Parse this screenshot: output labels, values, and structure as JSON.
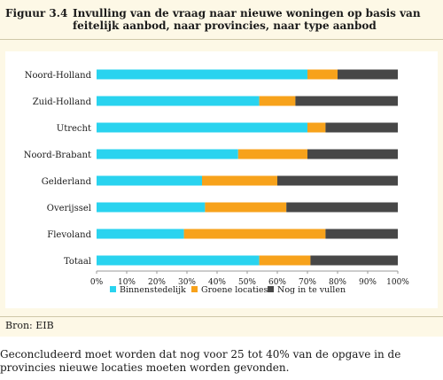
{
  "figure": {
    "label": "Figuur 3.4",
    "title": "Invulling van de vraag naar nieuwe woningen op basis van feitelijk aanbod, naar provincies, naar type aanbod"
  },
  "source": "Bron: EIB",
  "body_text": "Geconcludeerd moet worden dat nog voor 25 tot 40% van de opgave in de provincies nieuwe locaties moeten worden gevonden.",
  "chart_data": {
    "type": "bar",
    "orientation": "horizontal",
    "stacked": true,
    "categories": [
      "Noord-Holland",
      "Zuid-Holland",
      "Utrecht",
      "Noord-Brabant",
      "Gelderland",
      "Overijssel",
      "Flevoland",
      "Totaal"
    ],
    "series": [
      {
        "name": "Binnenstedelijk",
        "color": "#29d3ef",
        "values": [
          70,
          54,
          70,
          47,
          35,
          36,
          29,
          54
        ]
      },
      {
        "name": "Groene locaties",
        "color": "#f7a21b",
        "values": [
          10,
          12,
          6,
          23,
          25,
          27,
          47,
          17
        ]
      },
      {
        "name": "Nog in te vullen",
        "color": "#474747",
        "values": [
          20,
          34,
          24,
          30,
          40,
          37,
          24,
          29
        ]
      }
    ],
    "x_ticks": [
      "0%",
      "10%",
      "20%",
      "30%",
      "40%",
      "50%",
      "60%",
      "70%",
      "80%",
      "90%",
      "100%"
    ],
    "xlim": [
      0,
      100
    ],
    "grid": false,
    "legend_position": "bottom"
  }
}
